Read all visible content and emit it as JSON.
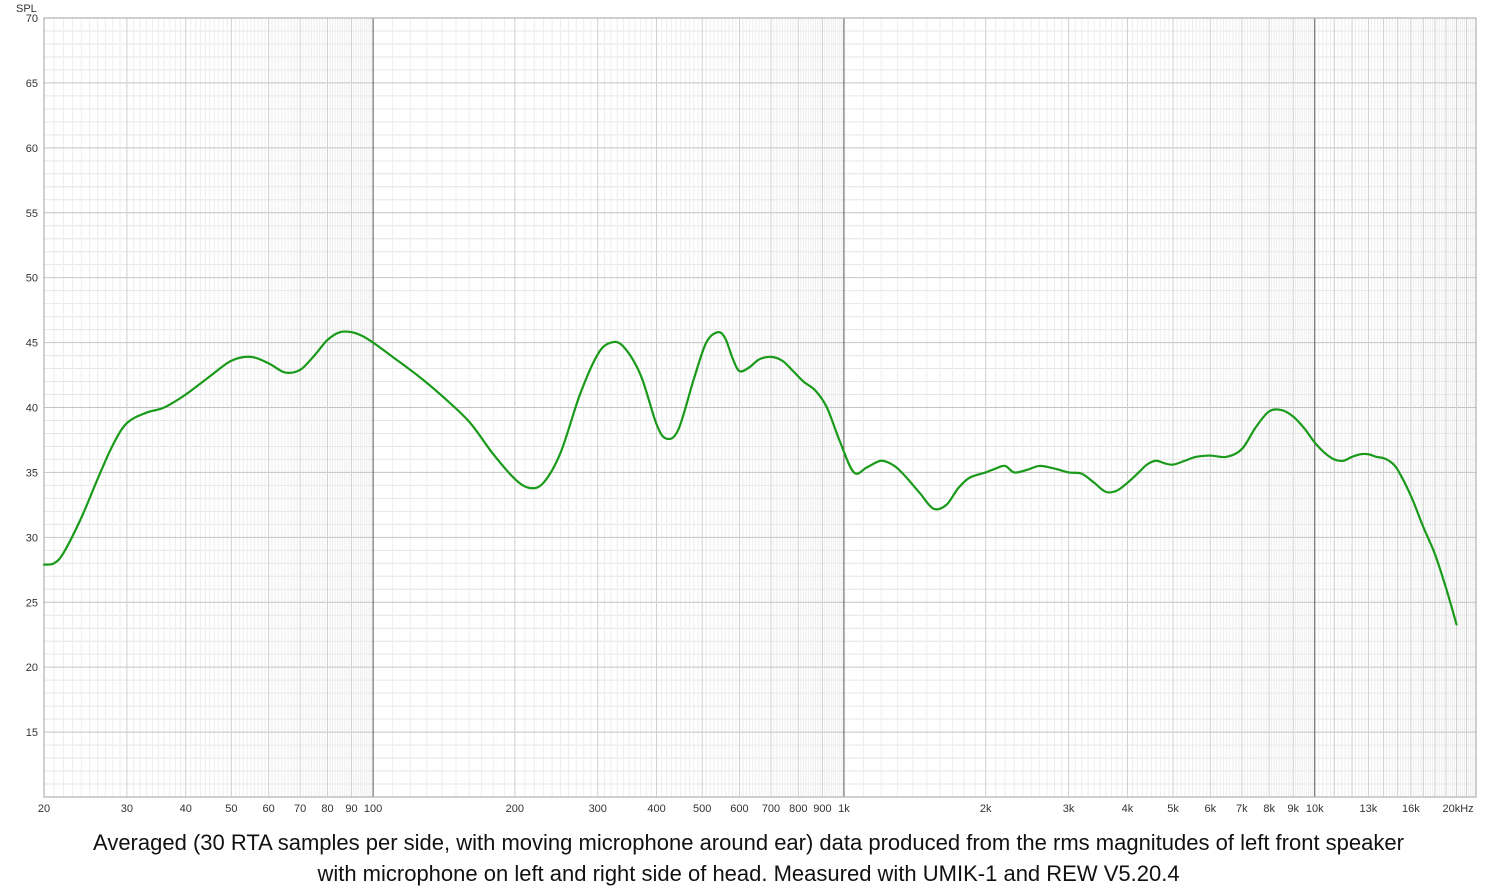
{
  "chart_data": {
    "type": "line",
    "title": "",
    "ylabel": "SPL",
    "xlabel": "",
    "x_scale": "log",
    "xlim": [
      20,
      22000
    ],
    "ylim": [
      10,
      70
    ],
    "grid": true,
    "y_ticks": [
      "70",
      "65",
      "60",
      "55",
      "50",
      "45",
      "40",
      "35",
      "30",
      "25",
      "20",
      "15"
    ],
    "x_ticks": [
      {
        "v": 20,
        "label": "20"
      },
      {
        "v": 30,
        "label": "30"
      },
      {
        "v": 40,
        "label": "40"
      },
      {
        "v": 50,
        "label": "50"
      },
      {
        "v": 60,
        "label": "60"
      },
      {
        "v": 70,
        "label": "70"
      },
      {
        "v": 80,
        "label": "80"
      },
      {
        "v": 90,
        "label": "90"
      },
      {
        "v": 100,
        "label": "100"
      },
      {
        "v": 200,
        "label": "200"
      },
      {
        "v": 300,
        "label": "300"
      },
      {
        "v": 400,
        "label": "400"
      },
      {
        "v": 500,
        "label": "500"
      },
      {
        "v": 600,
        "label": "600"
      },
      {
        "v": 700,
        "label": "700"
      },
      {
        "v": 800,
        "label": "800"
      },
      {
        "v": 900,
        "label": "900"
      },
      {
        "v": 1000,
        "label": "1k"
      },
      {
        "v": 2000,
        "label": "2k"
      },
      {
        "v": 3000,
        "label": "3k"
      },
      {
        "v": 4000,
        "label": "4k"
      },
      {
        "v": 5000,
        "label": "5k"
      },
      {
        "v": 6000,
        "label": "6k"
      },
      {
        "v": 7000,
        "label": "7k"
      },
      {
        "v": 8000,
        "label": "8k"
      },
      {
        "v": 9000,
        "label": "9k"
      },
      {
        "v": 10000,
        "label": "10k"
      },
      {
        "v": 13000,
        "label": "13k"
      },
      {
        "v": 16000,
        "label": "16k"
      },
      {
        "v": 20000,
        "label": "20kHz"
      }
    ],
    "series": [
      {
        "color": "#1a9a1a",
        "x": [
          20,
          21,
          22,
          24,
          26,
          28,
          30,
          33,
          36,
          40,
          45,
          50,
          55,
          60,
          65,
          70,
          75,
          80,
          85,
          90,
          95,
          100,
          110,
          125,
          140,
          160,
          180,
          200,
          215,
          230,
          250,
          275,
          300,
          320,
          340,
          370,
          400,
          420,
          445,
          480,
          510,
          540,
          560,
          580,
          600,
          630,
          660,
          700,
          740,
          780,
          820,
          870,
          920,
          980,
          1050,
          1120,
          1200,
          1280,
          1350,
          1450,
          1550,
          1650,
          1750,
          1850,
          2000,
          2100,
          2200,
          2300,
          2450,
          2600,
          2800,
          3000,
          3200,
          3400,
          3600,
          3800,
          4000,
          4200,
          4400,
          4600,
          4800,
          5000,
          5300,
          5600,
          6000,
          6500,
          7000,
          7500,
          8000,
          8500,
          9000,
          9500,
          10000,
          10500,
          11000,
          11500,
          12000,
          12500,
          13000,
          13500,
          14000,
          14500,
          15000,
          16000,
          17000,
          18000,
          19000,
          20000
        ],
        "y": [
          27.9,
          28.0,
          28.8,
          31.5,
          34.5,
          37.1,
          38.8,
          39.6,
          40.0,
          41.0,
          42.4,
          43.6,
          43.9,
          43.4,
          42.7,
          42.9,
          44.0,
          45.2,
          45.8,
          45.8,
          45.5,
          45.0,
          43.9,
          42.4,
          40.9,
          38.9,
          36.4,
          34.5,
          33.8,
          34.2,
          36.5,
          41.0,
          44.1,
          45.0,
          44.7,
          42.5,
          38.7,
          37.6,
          38.3,
          42.2,
          45.0,
          45.8,
          45.3,
          43.8,
          42.8,
          43.1,
          43.7,
          43.9,
          43.6,
          42.8,
          42.0,
          41.3,
          40.0,
          37.4,
          35.0,
          35.4,
          35.9,
          35.5,
          34.7,
          33.4,
          32.2,
          32.5,
          33.8,
          34.6,
          35.0,
          35.3,
          35.5,
          35.0,
          35.2,
          35.5,
          35.3,
          35.0,
          34.9,
          34.2,
          33.5,
          33.6,
          34.2,
          34.9,
          35.6,
          35.9,
          35.7,
          35.6,
          35.9,
          36.2,
          36.3,
          36.2,
          36.8,
          38.5,
          39.7,
          39.8,
          39.3,
          38.4,
          37.3,
          36.5,
          36.0,
          35.9,
          36.2,
          36.4,
          36.4,
          36.2,
          36.1,
          35.8,
          35.2,
          33.2,
          30.8,
          28.7,
          26.1,
          23.3
        ]
      }
    ],
    "caption": [
      "Averaged (30 RTA samples per side, with moving microphone around ear) data produced from the rms magnitudes of left front speaker",
      "with microphone on left and right side of head. Measured with UMIK-1 and REW V5.20.4"
    ]
  }
}
